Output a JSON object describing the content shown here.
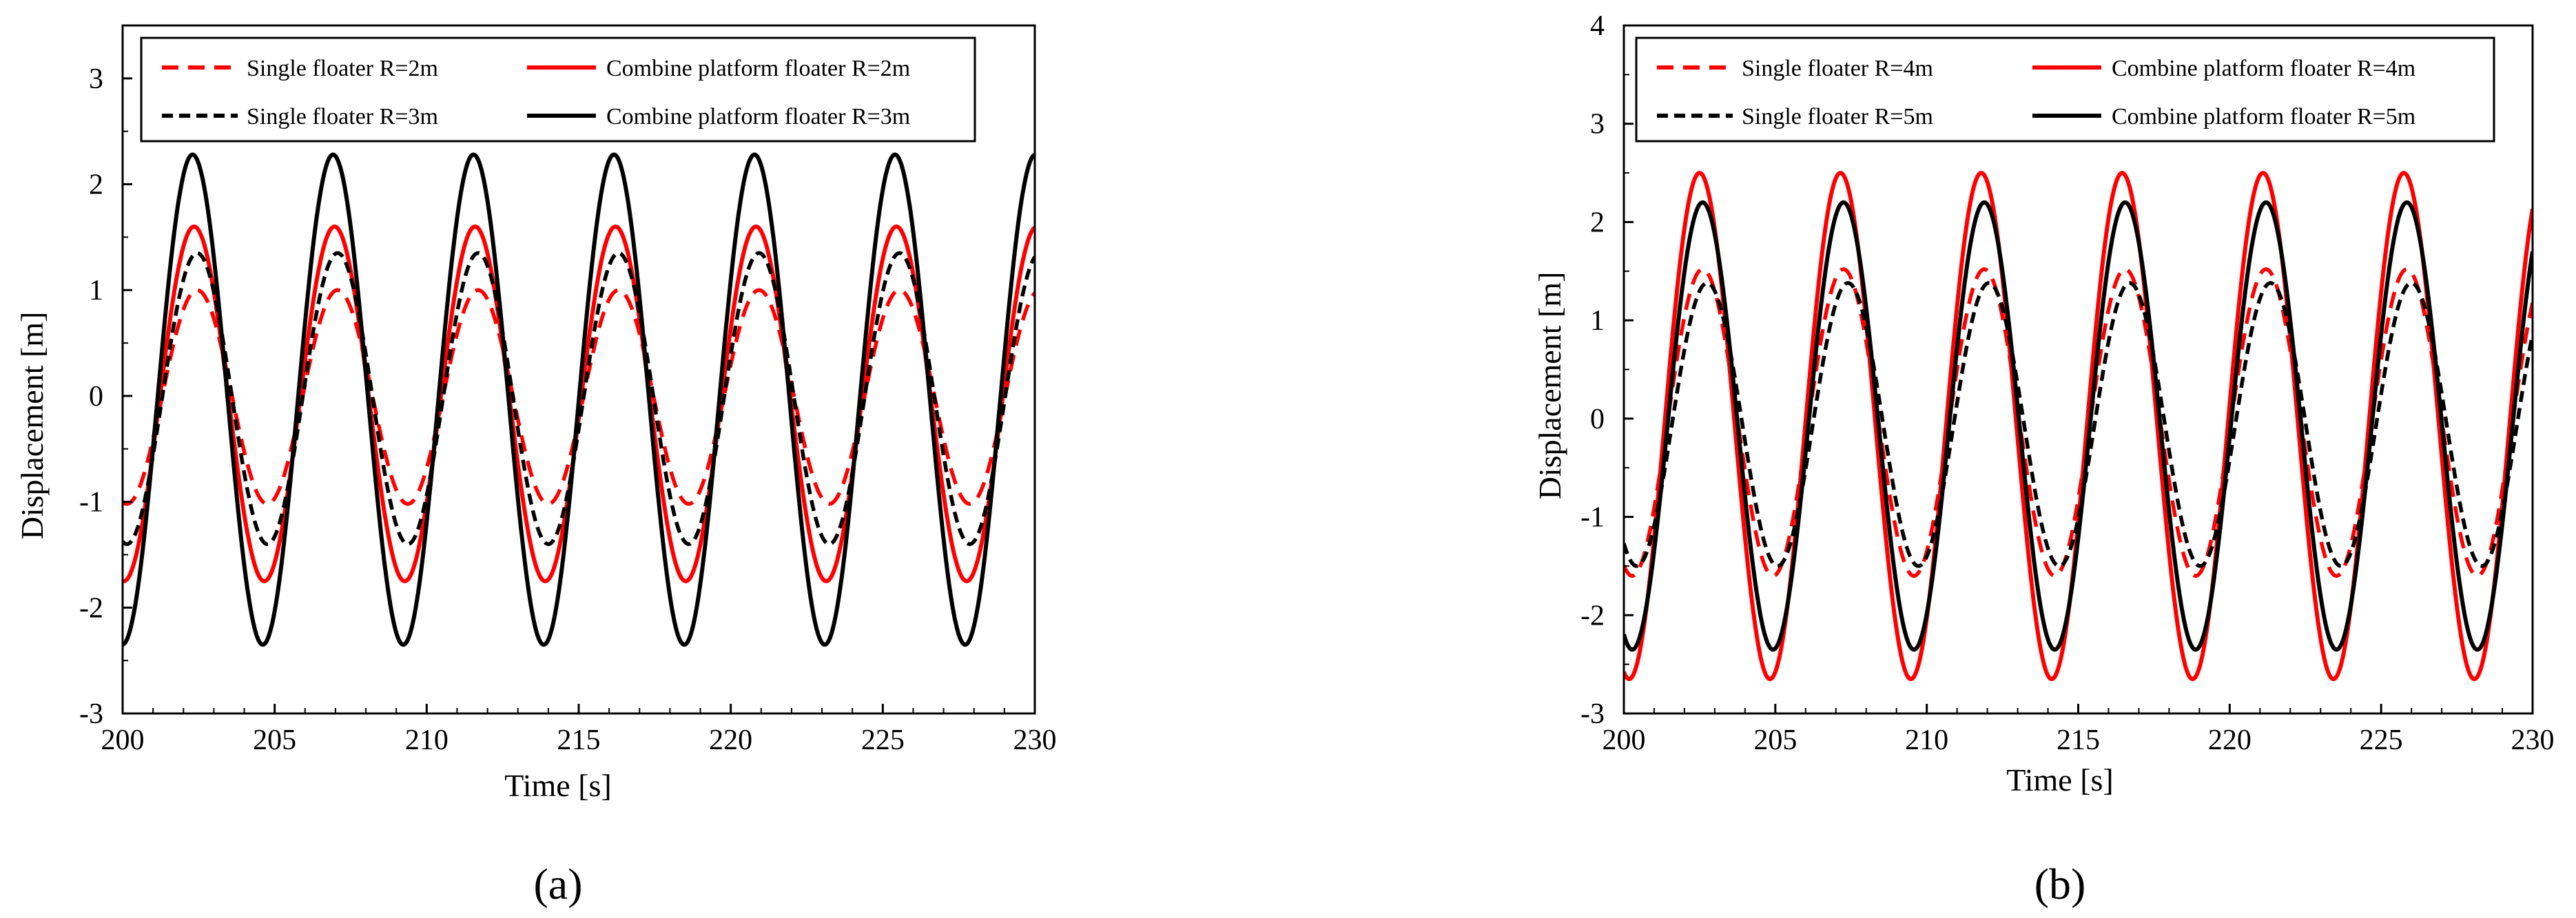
{
  "chart_data": [
    {
      "type": "line",
      "panel": "a",
      "xlabel": "Time [s]",
      "ylabel": "Displacement [m]",
      "xlim": [
        200,
        230
      ],
      "ylim": [
        -3,
        3.5
      ],
      "xticks": [
        "200",
        "205",
        "210",
        "215",
        "220",
        "225",
        "230"
      ],
      "yticks": [
        "-3",
        "-2",
        "-1",
        "0",
        "1",
        "2",
        "3"
      ],
      "period": 4.62,
      "series": [
        {
          "name": "Single floater R=2m",
          "color": "#ff0000",
          "style": "dashed",
          "amplitude": 1.0,
          "min": -1.02,
          "phase_peak": 202.45
        },
        {
          "name": "Combine platform floater R=2m",
          "color": "#ff0000",
          "style": "solid",
          "amplitude": 1.6,
          "min": -1.75,
          "phase_peak": 202.35
        },
        {
          "name": "Single floater R=3m",
          "color": "#000000",
          "style": "dashed",
          "amplitude": 1.35,
          "min": -1.4,
          "phase_peak": 202.45
        },
        {
          "name": "Combine platform floater R=3m",
          "color": "#000000",
          "style": "solid",
          "amplitude": 2.28,
          "min": -2.35,
          "phase_peak": 202.3
        }
      ]
    },
    {
      "type": "line",
      "panel": "b",
      "xlabel": "Time [s]",
      "ylabel": "Displacement [m]",
      "xlim": [
        200,
        230
      ],
      "ylim": [
        -3,
        4
      ],
      "xticks": [
        "200",
        "205",
        "210",
        "215",
        "220",
        "225",
        "230"
      ],
      "yticks": [
        "-3",
        "-2",
        "-1",
        "0",
        "1",
        "2",
        "3",
        "4"
      ],
      "period": 4.65,
      "series": [
        {
          "name": "Single floater R=4m",
          "color": "#ff0000",
          "style": "dashed",
          "amplitude": 1.52,
          "min": -1.6,
          "phase_peak": 202.6
        },
        {
          "name": "Combine platform floater R=4m",
          "color": "#ff0000",
          "style": "solid",
          "amplitude": 2.5,
          "min": -2.65,
          "phase_peak": 202.5
        },
        {
          "name": "Single floater R=5m",
          "color": "#000000",
          "style": "dashed",
          "amplitude": 1.38,
          "min": -1.5,
          "phase_peak": 202.75
        },
        {
          "name": "Combine platform floater R=5m",
          "color": "#000000",
          "style": "solid",
          "amplitude": 2.2,
          "min": -2.35,
          "phase_peak": 202.6
        }
      ]
    }
  ],
  "panel_labels": [
    "(a)",
    "(b)"
  ]
}
